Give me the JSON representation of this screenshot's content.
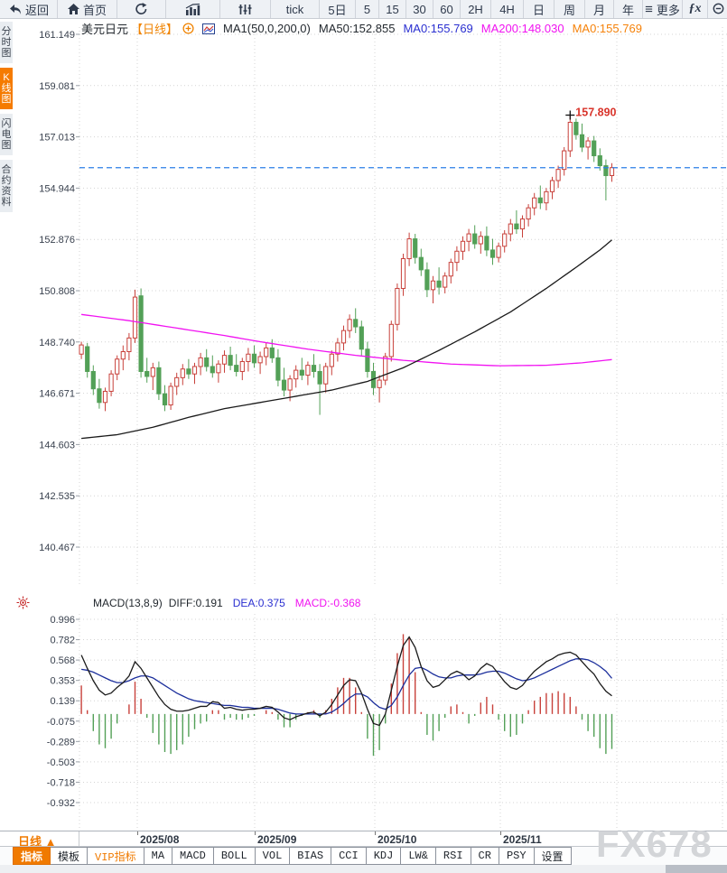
{
  "toolbar": {
    "items": [
      {
        "name": "back-button",
        "icon": "back-arrow-icon",
        "label": "返回"
      },
      {
        "name": "home-button",
        "icon": "home-icon",
        "label": "首页"
      },
      {
        "name": "refresh-button",
        "icon": "refresh-icon",
        "label": ""
      },
      {
        "name": "bar-chart-button",
        "icon": "bar-chart-icon",
        "label": ""
      },
      {
        "name": "candle-settings-button",
        "icon": "sliders-icon",
        "label": ""
      },
      {
        "name": "interval-tick-button",
        "label": "tick"
      },
      {
        "name": "interval-5d-button",
        "label": "5日"
      },
      {
        "name": "interval-5-button",
        "label": "5"
      },
      {
        "name": "interval-15-button",
        "label": "15"
      },
      {
        "name": "interval-30-button",
        "label": "30"
      },
      {
        "name": "interval-60-button",
        "label": "60"
      },
      {
        "name": "interval-2h-button",
        "label": "2H"
      },
      {
        "name": "interval-4h-button",
        "label": "4H"
      },
      {
        "name": "interval-day-button",
        "label": "日"
      },
      {
        "name": "interval-week-button",
        "label": "周"
      },
      {
        "name": "interval-month-button",
        "label": "月"
      },
      {
        "name": "interval-year-button",
        "label": "年"
      },
      {
        "name": "more-button",
        "icon": "menu-icon",
        "label": "更多"
      },
      {
        "name": "fx-indicator-button",
        "icon": "fx-icon",
        "label": ""
      },
      {
        "name": "zoom-out-button",
        "icon": "zoom-out-icon",
        "label": ""
      }
    ]
  },
  "sidebar": {
    "items": [
      {
        "name": "sidebar-tab-time-chart",
        "label": "分时图",
        "active": false
      },
      {
        "name": "sidebar-tab-kline-chart",
        "label": "K线图",
        "active": true
      },
      {
        "name": "sidebar-tab-lightning-chart",
        "label": "闪电图",
        "active": false
      },
      {
        "name": "sidebar-tab-contract-info",
        "label": "合约资料",
        "active": false
      }
    ]
  },
  "legend": {
    "symbol": "美元日元",
    "period": "【日线】",
    "ma_config": "MA1(50,0,200,0)",
    "ma50": "MA50:152.855",
    "ma0_blue": "MA0:155.769",
    "ma200": "MA200:148.030",
    "ma0_orange": "MA0:155.769"
  },
  "macd_legend": {
    "title": "MACD(13,8,9)",
    "diff": "DIFF:0.191",
    "dea": "DEA:0.375",
    "macd": "MACD:-0.368"
  },
  "bottom_bar": {
    "period_label": "日线 ▲",
    "tabs": [
      {
        "name": "tab-indicators",
        "label": "指标",
        "style": "selected"
      },
      {
        "name": "tab-templates",
        "label": "模板",
        "style": ""
      },
      {
        "name": "tab-vip-indicators",
        "label": "VIP指标",
        "style": "vip"
      },
      {
        "name": "tab-ma",
        "label": "MA",
        "style": ""
      },
      {
        "name": "tab-macd",
        "label": "MACD",
        "style": ""
      },
      {
        "name": "tab-boll",
        "label": "BOLL",
        "style": ""
      },
      {
        "name": "tab-vol",
        "label": "VOL",
        "style": ""
      },
      {
        "name": "tab-bias",
        "label": "BIAS",
        "style": ""
      },
      {
        "name": "tab-cci",
        "label": "CCI",
        "style": ""
      },
      {
        "name": "tab-kdj",
        "label": "KDJ",
        "style": ""
      },
      {
        "name": "tab-lw",
        "label": "LW&",
        "style": ""
      },
      {
        "name": "tab-rsi",
        "label": "RSI",
        "style": ""
      },
      {
        "name": "tab-cr",
        "label": "CR",
        "style": ""
      },
      {
        "name": "tab-psy",
        "label": "PSY",
        "style": ""
      },
      {
        "name": "tab-settings",
        "label": "设置",
        "style": ""
      }
    ]
  },
  "watermark": {
    "text": "FX678"
  },
  "chart_data": {
    "type": "candlestick",
    "symbol": "美元日元",
    "period": "日线",
    "y_ticks": [
      "161.149",
      "159.081",
      "157.013",
      "154.944",
      "152.876",
      "150.808",
      "148.740",
      "146.671",
      "144.603",
      "142.535",
      "140.467"
    ],
    "x_labels": [
      "2025/08",
      "2025/09",
      "2025/10",
      "2025/11"
    ],
    "price_line_value": 155.769,
    "peak_annotation": {
      "value": "157.890",
      "candle_index": 82,
      "price": 157.89
    },
    "colors": {
      "up": "#c8413b",
      "down": "#53a057",
      "ma50": "#1a1a1a",
      "ma200": "#f112f1",
      "diff": "#1a1a1a",
      "dea": "#1c2f9c",
      "price_line": "#2b7fe8",
      "annotation": "#d9342b",
      "accent_orange": "#f07a00"
    },
    "candles": [
      [
        148.25,
        148.75,
        148.05,
        148.62
      ],
      [
        148.55,
        148.7,
        147.3,
        147.55
      ],
      [
        147.55,
        147.8,
        146.6,
        146.85
      ],
      [
        146.85,
        147.25,
        146.05,
        146.3
      ],
      [
        146.3,
        146.9,
        145.95,
        146.75
      ],
      [
        146.75,
        147.6,
        146.55,
        147.45
      ],
      [
        147.45,
        148.2,
        147.2,
        148.05
      ],
      [
        148.05,
        148.6,
        147.6,
        148.35
      ],
      [
        148.35,
        149.1,
        148.0,
        148.9
      ],
      [
        148.9,
        150.85,
        148.7,
        150.55
      ],
      [
        150.6,
        150.9,
        147.3,
        147.55
      ],
      [
        147.55,
        148.1,
        147.1,
        147.35
      ],
      [
        147.35,
        147.9,
        146.8,
        147.7
      ],
      [
        147.7,
        147.95,
        146.4,
        146.65
      ],
      [
        146.65,
        147.0,
        145.95,
        146.2
      ],
      [
        146.2,
        147.1,
        146.0,
        146.95
      ],
      [
        146.95,
        147.5,
        146.6,
        147.3
      ],
      [
        147.3,
        147.85,
        147.0,
        147.65
      ],
      [
        147.65,
        148.05,
        147.25,
        147.45
      ],
      [
        147.45,
        147.9,
        147.05,
        147.75
      ],
      [
        147.75,
        148.3,
        147.4,
        148.1
      ],
      [
        148.1,
        148.45,
        147.55,
        147.75
      ],
      [
        147.75,
        148.2,
        147.3,
        147.5
      ],
      [
        147.5,
        148.0,
        147.1,
        147.85
      ],
      [
        147.85,
        148.4,
        147.5,
        148.2
      ],
      [
        148.2,
        148.55,
        147.6,
        147.8
      ],
      [
        147.8,
        148.25,
        147.35,
        147.55
      ],
      [
        147.55,
        148.1,
        147.2,
        147.95
      ],
      [
        147.95,
        148.5,
        147.55,
        148.25
      ],
      [
        148.25,
        148.6,
        147.7,
        147.9
      ],
      [
        147.9,
        148.35,
        147.45,
        148.15
      ],
      [
        148.15,
        148.7,
        147.8,
        148.5
      ],
      [
        148.5,
        148.85,
        147.9,
        148.1
      ],
      [
        148.1,
        148.45,
        146.95,
        147.2
      ],
      [
        147.2,
        147.7,
        146.55,
        146.8
      ],
      [
        146.8,
        147.4,
        146.35,
        147.25
      ],
      [
        147.25,
        147.8,
        146.9,
        147.6
      ],
      [
        147.6,
        148.1,
        147.2,
        147.4
      ],
      [
        147.4,
        147.95,
        147.0,
        147.8
      ],
      [
        147.8,
        148.25,
        147.3,
        147.55
      ],
      [
        147.55,
        147.85,
        145.8,
        147.05
      ],
      [
        147.05,
        147.9,
        146.7,
        147.75
      ],
      [
        147.75,
        148.4,
        147.4,
        148.25
      ],
      [
        148.25,
        148.9,
        147.95,
        148.7
      ],
      [
        148.7,
        149.4,
        148.4,
        149.2
      ],
      [
        149.2,
        149.85,
        148.9,
        149.65
      ],
      [
        149.65,
        150.1,
        149.1,
        149.35
      ],
      [
        149.35,
        149.6,
        148.2,
        148.45
      ],
      [
        148.45,
        148.75,
        147.3,
        147.55
      ],
      [
        147.55,
        147.9,
        146.6,
        146.9
      ],
      [
        146.9,
        147.4,
        146.3,
        147.2
      ],
      [
        147.2,
        148.3,
        147.0,
        148.15
      ],
      [
        148.15,
        149.6,
        147.95,
        149.45
      ],
      [
        149.45,
        151.1,
        149.2,
        150.9
      ],
      [
        150.9,
        152.3,
        150.6,
        152.1
      ],
      [
        152.1,
        153.15,
        151.8,
        152.9
      ],
      [
        152.9,
        153.1,
        151.9,
        152.15
      ],
      [
        152.15,
        152.5,
        151.4,
        151.65
      ],
      [
        151.65,
        151.95,
        150.55,
        150.85
      ],
      [
        150.85,
        151.4,
        150.3,
        151.2
      ],
      [
        151.2,
        151.75,
        150.65,
        150.95
      ],
      [
        150.95,
        151.55,
        150.7,
        151.4
      ],
      [
        151.4,
        152.1,
        151.1,
        151.95
      ],
      [
        151.95,
        152.6,
        151.6,
        152.4
      ],
      [
        152.4,
        153.0,
        152.05,
        152.8
      ],
      [
        152.8,
        153.3,
        152.4,
        153.1
      ],
      [
        153.1,
        153.45,
        152.5,
        152.7
      ],
      [
        152.7,
        153.2,
        152.3,
        153.0
      ],
      [
        153.0,
        153.4,
        152.2,
        152.45
      ],
      [
        152.45,
        152.9,
        151.85,
        152.15
      ],
      [
        152.15,
        152.75,
        151.95,
        152.6
      ],
      [
        152.6,
        153.25,
        152.35,
        153.1
      ],
      [
        153.1,
        153.7,
        152.8,
        153.5
      ],
      [
        153.5,
        154.05,
        153.1,
        153.3
      ],
      [
        153.3,
        153.85,
        152.95,
        153.7
      ],
      [
        153.7,
        154.3,
        153.4,
        154.15
      ],
      [
        154.15,
        154.75,
        153.85,
        154.55
      ],
      [
        154.55,
        155.05,
        154.1,
        154.35
      ],
      [
        154.35,
        154.95,
        154.05,
        154.8
      ],
      [
        154.8,
        155.4,
        154.5,
        155.25
      ],
      [
        155.25,
        155.85,
        154.95,
        155.7
      ],
      [
        155.7,
        156.6,
        155.45,
        156.45
      ],
      [
        156.45,
        157.89,
        156.2,
        157.6
      ],
      [
        157.6,
        157.75,
        156.9,
        157.1
      ],
      [
        157.1,
        157.55,
        156.4,
        156.6
      ],
      [
        156.6,
        157.0,
        156.1,
        156.85
      ],
      [
        156.85,
        157.05,
        156.0,
        156.25
      ],
      [
        156.25,
        156.55,
        155.65,
        155.85
      ],
      [
        155.85,
        156.1,
        154.45,
        155.45
      ],
      [
        155.45,
        155.95,
        155.2,
        155.77
      ]
    ],
    "ma50_anchors": [
      [
        0,
        144.85
      ],
      [
        6,
        145.0
      ],
      [
        12,
        145.3
      ],
      [
        18,
        145.7
      ],
      [
        24,
        146.05
      ],
      [
        30,
        146.3
      ],
      [
        36,
        146.55
      ],
      [
        42,
        146.8
      ],
      [
        48,
        147.15
      ],
      [
        54,
        147.7
      ],
      [
        60,
        148.4
      ],
      [
        66,
        149.15
      ],
      [
        72,
        149.95
      ],
      [
        78,
        150.9
      ],
      [
        83,
        151.75
      ],
      [
        87,
        152.45
      ],
      [
        89,
        152.855
      ]
    ],
    "ma200_anchors": [
      [
        0,
        149.85
      ],
      [
        8,
        149.6
      ],
      [
        16,
        149.3
      ],
      [
        24,
        149.0
      ],
      [
        30,
        148.75
      ],
      [
        38,
        148.45
      ],
      [
        46,
        148.2
      ],
      [
        54,
        148.0
      ],
      [
        62,
        147.85
      ],
      [
        70,
        147.78
      ],
      [
        78,
        147.8
      ],
      [
        84,
        147.9
      ],
      [
        89,
        148.03
      ]
    ],
    "macd": {
      "params": "(13,8,9)",
      "ticks": [
        "0.996",
        "0.782",
        "0.568",
        "0.353",
        "0.139",
        "-0.075",
        "-0.289",
        "-0.503",
        "-0.718",
        "-0.932"
      ],
      "diff": [
        0.62,
        0.48,
        0.35,
        0.25,
        0.2,
        0.22,
        0.28,
        0.33,
        0.4,
        0.55,
        0.48,
        0.38,
        0.28,
        0.18,
        0.1,
        0.05,
        0.03,
        0.03,
        0.04,
        0.06,
        0.08,
        0.08,
        0.13,
        0.12,
        0.06,
        0.07,
        0.05,
        0.04,
        0.05,
        0.05,
        0.06,
        0.08,
        0.07,
        0.02,
        -0.04,
        -0.06,
        -0.03,
        -0.01,
        0.01,
        0.02,
        -0.02,
        0.02,
        0.1,
        0.2,
        0.3,
        0.36,
        0.35,
        0.22,
        0.05,
        -0.1,
        -0.12,
        0.0,
        0.25,
        0.5,
        0.72,
        0.81,
        0.7,
        0.5,
        0.35,
        0.28,
        0.3,
        0.36,
        0.42,
        0.45,
        0.42,
        0.36,
        0.4,
        0.48,
        0.53,
        0.5,
        0.42,
        0.34,
        0.28,
        0.26,
        0.3,
        0.38,
        0.45,
        0.5,
        0.55,
        0.58,
        0.62,
        0.64,
        0.65,
        0.62,
        0.55,
        0.48,
        0.42,
        0.32,
        0.24,
        0.191
      ],
      "dea": [
        0.47,
        0.46,
        0.44,
        0.41,
        0.38,
        0.35,
        0.33,
        0.33,
        0.35,
        0.38,
        0.4,
        0.4,
        0.38,
        0.34,
        0.3,
        0.26,
        0.22,
        0.19,
        0.16,
        0.14,
        0.13,
        0.12,
        0.11,
        0.1,
        0.09,
        0.09,
        0.08,
        0.07,
        0.07,
        0.06,
        0.06,
        0.06,
        0.06,
        0.05,
        0.03,
        0.01,
        0.0,
        0.0,
        0.0,
        0.0,
        0.0,
        0.0,
        0.02,
        0.06,
        0.11,
        0.17,
        0.21,
        0.21,
        0.18,
        0.12,
        0.07,
        0.05,
        0.09,
        0.18,
        0.3,
        0.41,
        0.48,
        0.49,
        0.46,
        0.42,
        0.39,
        0.38,
        0.38,
        0.4,
        0.41,
        0.41,
        0.41,
        0.42,
        0.44,
        0.45,
        0.45,
        0.43,
        0.4,
        0.37,
        0.35,
        0.36,
        0.38,
        0.41,
        0.44,
        0.47,
        0.5,
        0.53,
        0.56,
        0.58,
        0.58,
        0.57,
        0.54,
        0.5,
        0.45,
        0.375
      ]
    }
  }
}
